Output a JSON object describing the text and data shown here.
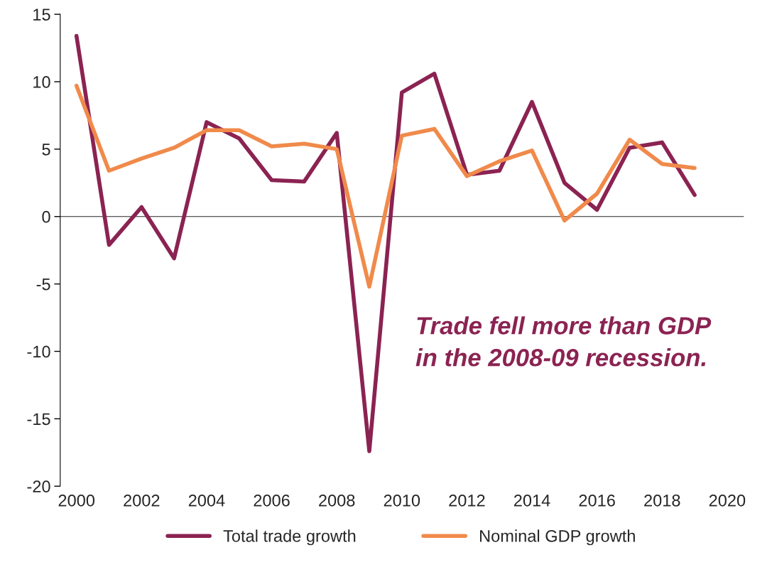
{
  "chart_data": {
    "type": "line",
    "x": [
      2000,
      2001,
      2002,
      2003,
      2004,
      2005,
      2006,
      2007,
      2008,
      2009,
      2010,
      2011,
      2012,
      2013,
      2014,
      2015,
      2016,
      2017,
      2018,
      2019
    ],
    "series": [
      {
        "name": "Total trade growth",
        "color": "#8b2352",
        "values": [
          13.4,
          -2.1,
          0.7,
          -3.1,
          7.0,
          5.8,
          2.7,
          2.6,
          6.2,
          -17.4,
          9.2,
          10.6,
          3.1,
          3.4,
          8.5,
          2.5,
          0.5,
          5.1,
          5.5,
          1.6
        ]
      },
      {
        "name": "Nominal GDP growth",
        "color": "#f08a4b",
        "values": [
          9.7,
          3.4,
          4.3,
          5.1,
          6.4,
          6.4,
          5.2,
          5.4,
          5.0,
          -5.2,
          6.0,
          6.5,
          3.0,
          4.1,
          4.9,
          -0.3,
          1.7,
          5.7,
          3.9,
          3.6
        ]
      }
    ],
    "xlim": [
      1999.5,
      2020.5
    ],
    "xticks": [
      2000,
      2002,
      2004,
      2006,
      2008,
      2010,
      2012,
      2014,
      2016,
      2018,
      2020
    ],
    "ylim": [
      -20,
      15
    ],
    "yticks": [
      -20,
      -15,
      -10,
      -5,
      0,
      5,
      10,
      15
    ],
    "annotations": [
      "Trade fell more than GDP\nin the 2008-09 recession."
    ],
    "legend": "bottom",
    "marker": "none",
    "line_style": "solid"
  }
}
